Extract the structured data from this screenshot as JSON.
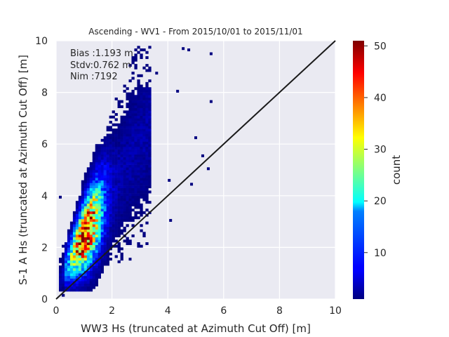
{
  "chart_data": {
    "type": "heatmap",
    "title": "Ascending - WV1 - From 2015/10/01 to 2015/11/01",
    "xlabel": "WW3 Hs (truncated at Azimuth Cut Off) [m]",
    "ylabel": "S-1 A Hs (truncated at Azimuth Cut Off) [m]",
    "xlim": [
      0,
      10
    ],
    "ylim": [
      0,
      10
    ],
    "xticks": [
      "0",
      "2",
      "4",
      "6",
      "8",
      "10"
    ],
    "yticks": [
      "0",
      "2",
      "4",
      "6",
      "8",
      "10"
    ],
    "grid": true,
    "reference_line": {
      "x": [
        0,
        10
      ],
      "y": [
        0,
        10
      ],
      "color": "#1a1a1a"
    },
    "stats": {
      "bias": "Bias :1.193 m",
      "stdv": "Stdv:0.762 m",
      "nim": "Nim :7192"
    },
    "colorbar": {
      "label": "count",
      "colormap": "jet",
      "range": [
        1,
        51
      ],
      "ticks": [
        "10",
        "20",
        "30",
        "40",
        "50"
      ]
    },
    "distribution": {
      "description_points": [
        {
          "x": 1.0,
          "y": 1.8,
          "count": 48
        },
        {
          "x": 1.3,
          "y": 2.3,
          "count": 38
        },
        {
          "x": 1.6,
          "y": 2.8,
          "count": 25
        },
        {
          "x": 2.0,
          "y": 3.5,
          "count": 14
        },
        {
          "x": 2.4,
          "y": 4.5,
          "count": 8
        },
        {
          "x": 2.7,
          "y": 5.5,
          "count": 4
        },
        {
          "x": 0.6,
          "y": 1.1,
          "count": 20
        }
      ],
      "outliers": [
        {
          "x": 4.55,
          "y": 9.7
        },
        {
          "x": 4.75,
          "y": 9.65
        },
        {
          "x": 5.55,
          "y": 9.5
        },
        {
          "x": 3.6,
          "y": 8.75
        },
        {
          "x": 4.35,
          "y": 8.05
        },
        {
          "x": 5.55,
          "y": 7.65
        },
        {
          "x": 4.1,
          "y": 3.05
        },
        {
          "x": 4.85,
          "y": 4.45
        },
        {
          "x": 5.45,
          "y": 5.05
        },
        {
          "x": 0.15,
          "y": 3.95
        },
        {
          "x": 5.0,
          "y": 6.25
        },
        {
          "x": 5.25,
          "y": 5.55
        },
        {
          "x": 4.05,
          "y": 4.6
        },
        {
          "x": 2.65,
          "y": 1.55
        }
      ]
    }
  }
}
